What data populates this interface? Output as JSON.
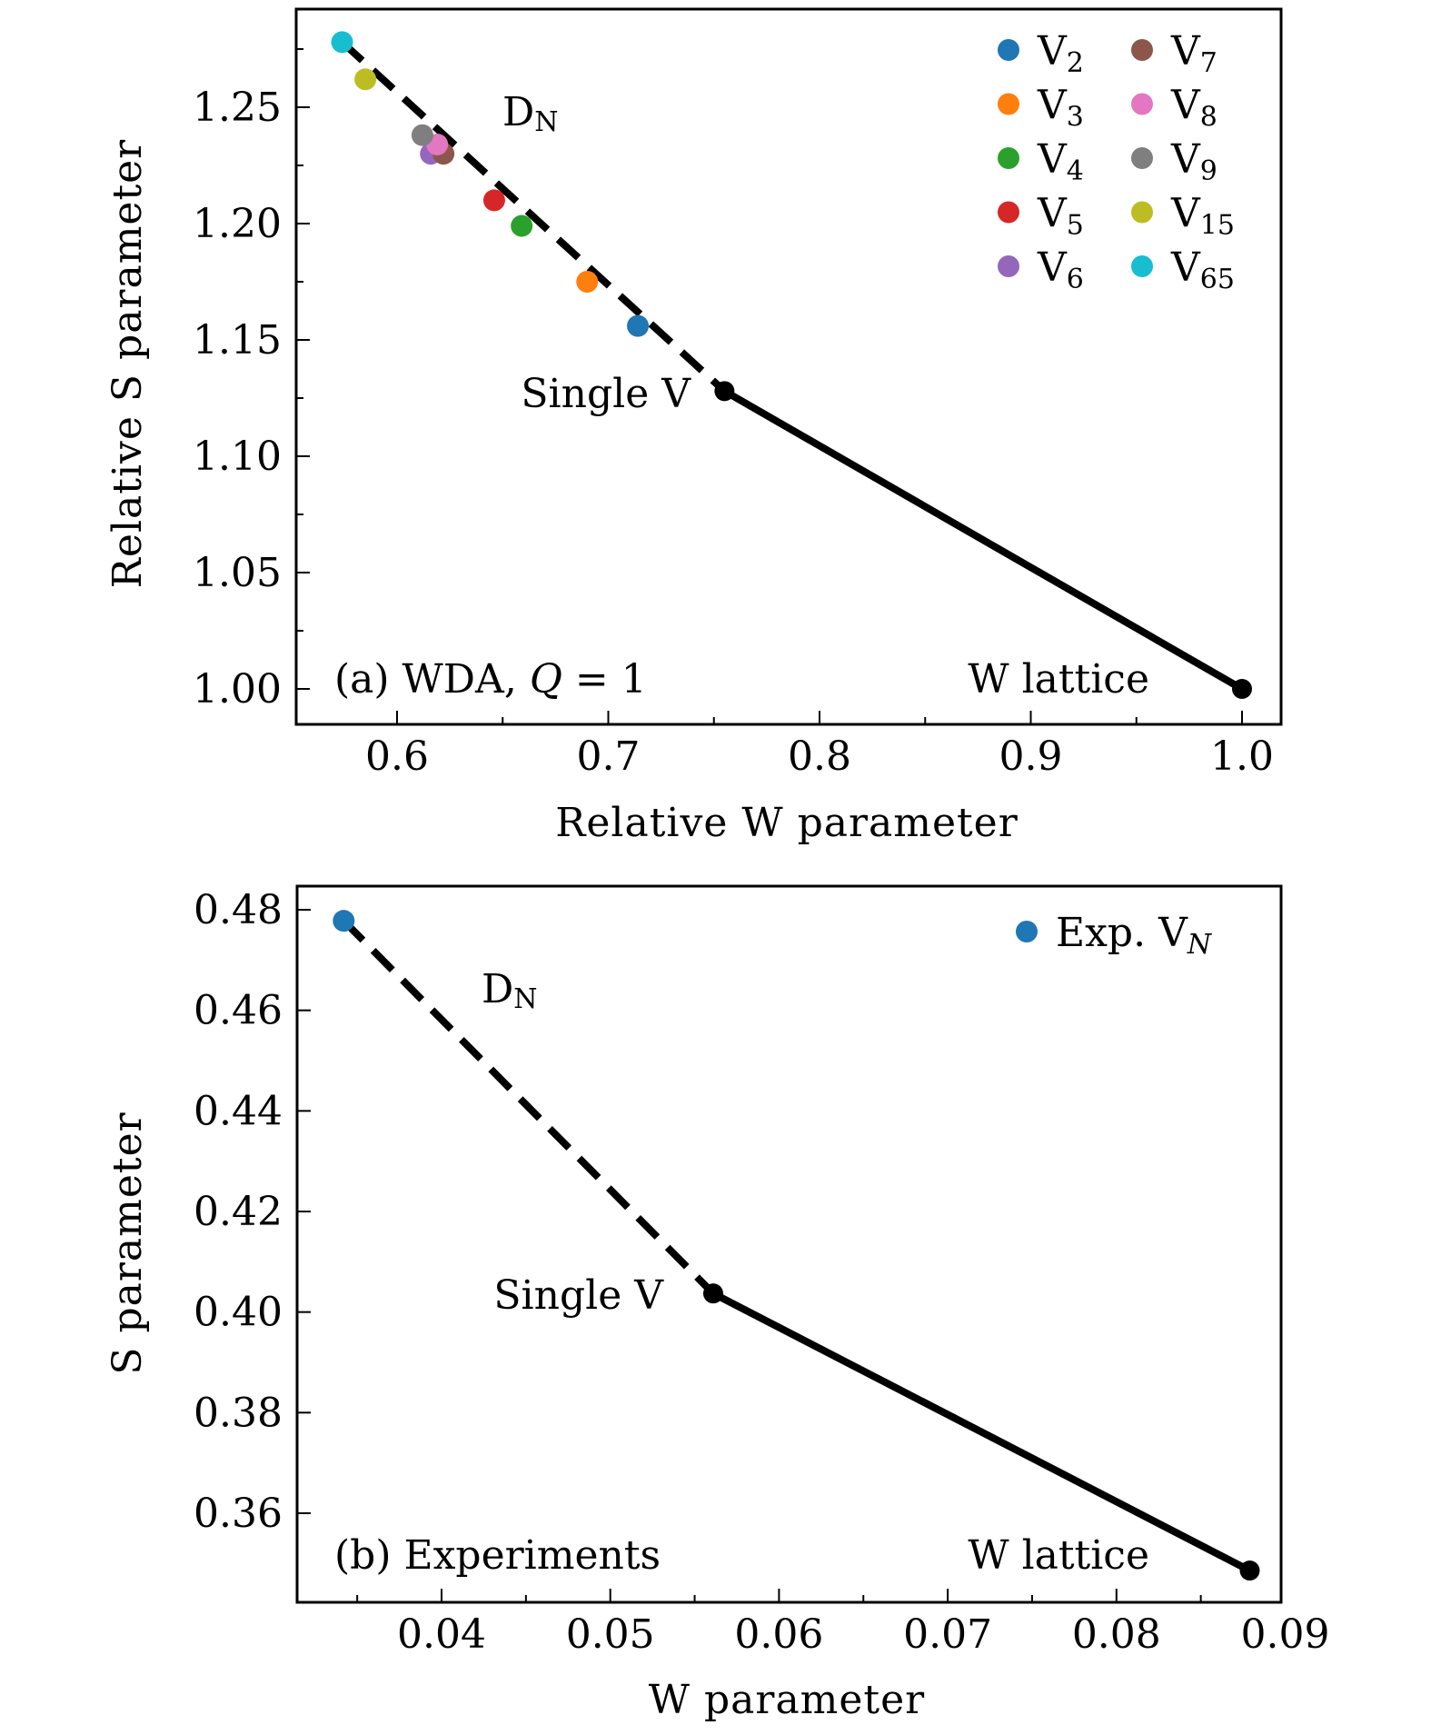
{
  "chart_data": [
    {
      "type": "scatter",
      "panel": "a",
      "title": "",
      "xlabel": "Relative W parameter",
      "ylabel": "Relative S parameter",
      "xlim": [
        0.553,
        1.021
      ],
      "ylim": [
        0.985,
        1.296
      ],
      "xticks": [
        0.6,
        0.7,
        0.8,
        0.9,
        1.0
      ],
      "xtick_labels": [
        "0.6",
        "0.7",
        "0.8",
        "0.9",
        "1.0"
      ],
      "yticks": [
        1.0,
        1.05,
        1.1,
        1.15,
        1.2,
        1.25
      ],
      "ytick_labels": [
        "1.00",
        "1.05",
        "1.10",
        "1.15",
        "1.20",
        "1.25"
      ],
      "x_minor_step": 0.05,
      "y_minor_step": 0.025,
      "grid": false,
      "legend_placement": "top-right",
      "legend_columns": 2,
      "series": [
        {
          "name": "V",
          "sub": "2",
          "color": "#1f77b4",
          "x": 0.714,
          "y": 1.156
        },
        {
          "name": "V",
          "sub": "3",
          "color": "#ff7f0e",
          "x": 0.69,
          "y": 1.175
        },
        {
          "name": "V",
          "sub": "4",
          "color": "#2ca02c",
          "x": 0.659,
          "y": 1.199
        },
        {
          "name": "V",
          "sub": "5",
          "color": "#d62728",
          "x": 0.646,
          "y": 1.21
        },
        {
          "name": "V",
          "sub": "6",
          "color": "#9467bd",
          "x": 0.616,
          "y": 1.23
        },
        {
          "name": "V",
          "sub": "7",
          "color": "#8c564b",
          "x": 0.622,
          "y": 1.23
        },
        {
          "name": "V",
          "sub": "8",
          "color": "#e377c2",
          "x": 0.619,
          "y": 1.234
        },
        {
          "name": "V",
          "sub": "9",
          "color": "#7f7f7f",
          "x": 0.612,
          "y": 1.238
        },
        {
          "name": "V",
          "sub": "15",
          "color": "#bcbd22",
          "x": 0.585,
          "y": 1.262
        },
        {
          "name": "V",
          "sub": "65",
          "color": "#17becf",
          "x": 0.574,
          "y": 1.278
        }
      ],
      "lines": [
        {
          "name": "D_N",
          "style": "dashed",
          "color": "#000000",
          "points": [
            [
              0.574,
              1.278
            ],
            [
              0.755,
              1.128
            ]
          ]
        },
        {
          "name": "solid",
          "style": "solid",
          "color": "#000000",
          "points": [
            [
              0.755,
              1.128
            ],
            [
              1.0,
              1.0
            ]
          ]
        }
      ],
      "reference_points": [
        {
          "name": "Single V",
          "x": 0.755,
          "y": 1.128,
          "color": "#000000"
        },
        {
          "name": "W lattice",
          "x": 1.0,
          "y": 1.0,
          "color": "#000000"
        }
      ],
      "annotations": {
        "panel_label": "(a) WDA, ",
        "panel_label_math": "Q",
        "panel_label_tail": " = 1",
        "dn_main": "D",
        "dn_sub": "N",
        "single_v": "Single V",
        "w_lattice": "W lattice"
      }
    },
    {
      "type": "scatter",
      "panel": "b",
      "title": "",
      "xlabel": "W parameter",
      "ylabel": "S parameter",
      "xlim": [
        0.0316,
        0.09
      ],
      "ylim": [
        0.3435,
        0.4868
      ],
      "xticks": [
        0.04,
        0.05,
        0.06,
        0.07,
        0.08,
        0.09
      ],
      "xtick_labels": [
        "0.04",
        "0.05",
        "0.06",
        "0.07",
        "0.08",
        "0.09"
      ],
      "yticks": [
        0.36,
        0.38,
        0.4,
        0.42,
        0.44,
        0.46,
        0.48
      ],
      "ytick_labels": [
        "0.36",
        "0.38",
        "0.40",
        "0.42",
        "0.44",
        "0.46",
        "0.48"
      ],
      "x_minor_step": 0.005,
      "grid": false,
      "legend_placement": "top-right",
      "series": [
        {
          "name": "Exp. V",
          "sub": "N",
          "color": "#1f77b4",
          "x": 0.0342,
          "y": 0.4778
        }
      ],
      "lines": [
        {
          "name": "D_N",
          "style": "dashed",
          "color": "#000000",
          "points": [
            [
              0.0342,
              0.4778
            ],
            [
              0.0561,
              0.4037
            ]
          ]
        },
        {
          "name": "solid",
          "style": "solid",
          "color": "#000000",
          "points": [
            [
              0.0561,
              0.4037
            ],
            [
              0.0879,
              0.3486
            ]
          ]
        }
      ],
      "reference_points": [
        {
          "name": "Single V",
          "x": 0.0561,
          "y": 0.4037,
          "color": "#000000"
        },
        {
          "name": "W lattice",
          "x": 0.0879,
          "y": 0.3486,
          "color": "#000000"
        }
      ],
      "annotations": {
        "panel_label": "(b) Experiments",
        "dn_main": "D",
        "dn_sub": "N",
        "single_v": "Single V",
        "w_lattice": "W lattice"
      }
    }
  ]
}
